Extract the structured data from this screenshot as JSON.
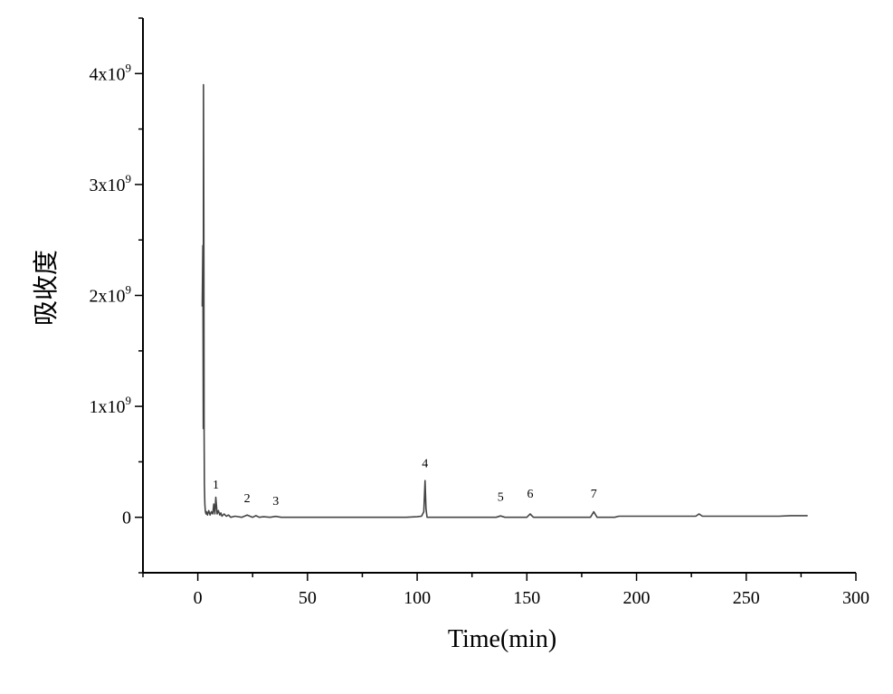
{
  "chart_data": {
    "type": "line",
    "title": "",
    "xlabel": "Time(min)",
    "ylabel": "吸收度",
    "xlim": [
      -25,
      300
    ],
    "ylim": [
      -500000000.0,
      4500000000.0
    ],
    "xticks": [
      0,
      50,
      100,
      150,
      200,
      250,
      300
    ],
    "yticks": [
      {
        "value": 0,
        "mantissa": "0",
        "exp": ""
      },
      {
        "value": 1000000000.0,
        "mantissa": "1x10",
        "exp": "9"
      },
      {
        "value": 2000000000.0,
        "mantissa": "2x10",
        "exp": "9"
      },
      {
        "value": 3000000000.0,
        "mantissa": "3x10",
        "exp": "9"
      },
      {
        "value": 4000000000.0,
        "mantissa": "4x10",
        "exp": "9"
      }
    ],
    "grid": false,
    "line_color": "#444444",
    "series": [
      {
        "x": [
          2.0,
          2.3,
          2.5,
          2.6,
          2.75,
          2.9,
          3.0,
          3.2,
          3.4,
          3.6,
          3.8,
          4.0,
          4.4,
          5.0,
          5.6,
          6.2,
          6.8,
          7.3,
          7.8,
          8.2,
          8.8,
          9.4,
          10.0,
          10.5,
          11.0,
          12.0,
          13.0,
          14.0,
          15.0,
          17.0,
          20.0,
          22.5,
          25.0,
          26.5,
          28.0,
          30.0,
          33.0,
          35.5,
          38.0,
          45.0,
          60.0,
          80.0,
          95.0,
          100.0,
          102.0,
          103.0,
          103.6,
          104.0,
          104.5,
          106.0,
          120.0,
          136.0,
          138.0,
          140.0,
          150.0,
          151.5,
          153.0,
          165.0,
          179.0,
          180.5,
          182.0,
          190.0,
          192.0,
          200.0,
          215.0,
          227.0,
          228.5,
          230.0,
          250.0,
          265.0,
          270.0,
          278.0
        ],
        "y": [
          1900000000.0,
          2450000000.0,
          800000000.0,
          3900000000.0,
          2600000000.0,
          780000000.0,
          300000000.0,
          120000000.0,
          60000000.0,
          40000000.0,
          30000000.0,
          50000000.0,
          20000000.0,
          60000000.0,
          20000000.0,
          50000000.0,
          30000000.0,
          120000000.0,
          30000000.0,
          180000000.0,
          30000000.0,
          60000000.0,
          20000000.0,
          40000000.0,
          10000000.0,
          30000000.0,
          10000000.0,
          20000000.0,
          0.0,
          10000000.0,
          0.0,
          20000000.0,
          0.0,
          15000000.0,
          0.0,
          5000000.0,
          0.0,
          8000000.0,
          0.0,
          0.0,
          0.0,
          0.0,
          0.0,
          5000000.0,
          10000000.0,
          50000000.0,
          330000000.0,
          80000000.0,
          0.0,
          0.0,
          0.0,
          0.0,
          12000000.0,
          0.0,
          0.0,
          30000000.0,
          0.0,
          0.0,
          0.0,
          50000000.0,
          0.0,
          0.0,
          10000000.0,
          10000000.0,
          10000000.0,
          10000000.0,
          30000000.0,
          10000000.0,
          10000000.0,
          10000000.0,
          15000000.0,
          15000000.0
        ]
      }
    ],
    "annotations": [
      {
        "text": "1",
        "x": 8.2,
        "y": 260000000.0
      },
      {
        "text": "2",
        "x": 22.5,
        "y": 135000000.0
      },
      {
        "text": "3",
        "x": 35.5,
        "y": 110000000.0
      },
      {
        "text": "4",
        "x": 103.6,
        "y": 450000000.0
      },
      {
        "text": "5",
        "x": 138.0,
        "y": 150000000.0
      },
      {
        "text": "6",
        "x": 151.5,
        "y": 175000000.0
      },
      {
        "text": "7",
        "x": 180.5,
        "y": 175000000.0
      }
    ]
  }
}
